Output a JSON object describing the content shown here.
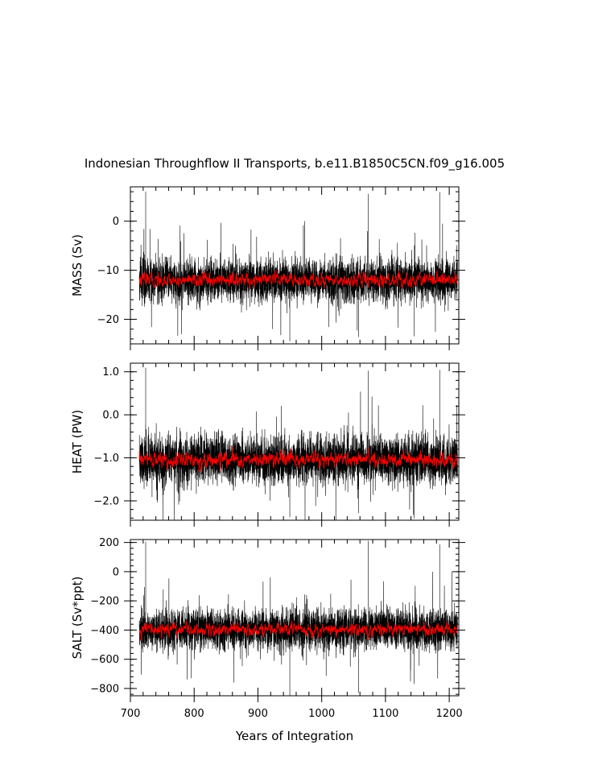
{
  "figure": {
    "title": "Indonesian Throughflow II Transports, b.e11.B1850C5CN.f09_g16.005",
    "xlabel": "Years of Integration"
  },
  "chart_data": [
    {
      "type": "line",
      "ylabel": "MASS (Sv)",
      "xlim": [
        700,
        1215
      ],
      "ylim": [
        -25,
        7
      ],
      "xticks": [
        700,
        800,
        900,
        1000,
        1100,
        1200
      ],
      "yticks": [
        0,
        -10,
        -20
      ],
      "ytick_labels": [
        "0",
        "−10",
        "−20"
      ],
      "series": [
        {
          "color": "#000000",
          "x_range": [
            714,
            1213
          ],
          "mean": -12,
          "amplitude": 3.2,
          "max_spike": 6.5,
          "min_spike": -25
        },
        {
          "color": "#ff0000",
          "x_range": [
            714,
            1213
          ],
          "mean": -12,
          "amplitude": 0.7
        }
      ]
    },
    {
      "type": "line",
      "ylabel": "HEAT (PW)",
      "xlim": [
        700,
        1215
      ],
      "ylim": [
        -2.45,
        1.2
      ],
      "xticks": [
        700,
        800,
        900,
        1000,
        1100,
        1200
      ],
      "yticks": [
        1.0,
        0.0,
        -1.0,
        -2.0
      ],
      "ytick_labels": [
        "1.0",
        "0.0",
        "−1.0",
        "−2.0"
      ],
      "series": [
        {
          "color": "#000000",
          "x_range": [
            714,
            1213
          ],
          "mean": -1.05,
          "amplitude": 0.42,
          "max_spike": 1.1,
          "min_spike": -2.45
        },
        {
          "color": "#ff0000",
          "x_range": [
            714,
            1213
          ],
          "mean": -1.05,
          "amplitude": 0.09
        }
      ]
    },
    {
      "type": "line",
      "ylabel": "SALT (Sv*ppt)",
      "xlim": [
        700,
        1215
      ],
      "ylim": [
        -850,
        220
      ],
      "xticks": [
        700,
        800,
        900,
        1000,
        1100,
        1200
      ],
      "yticks": [
        200,
        0,
        -200,
        -400,
        -600,
        -800
      ],
      "ytick_labels": [
        "200",
        "0",
        "−200",
        "−400",
        "−600",
        "−800"
      ],
      "xtick_labels": [
        "700",
        "800",
        "900",
        "1000",
        "1100",
        "1200"
      ],
      "series": [
        {
          "color": "#000000",
          "x_range": [
            714,
            1213
          ],
          "mean": -395,
          "amplitude": 105,
          "max_spike": 215,
          "min_spike": -850
        },
        {
          "color": "#ff0000",
          "x_range": [
            714,
            1213
          ],
          "mean": -395,
          "amplitude": 22
        }
      ]
    }
  ]
}
